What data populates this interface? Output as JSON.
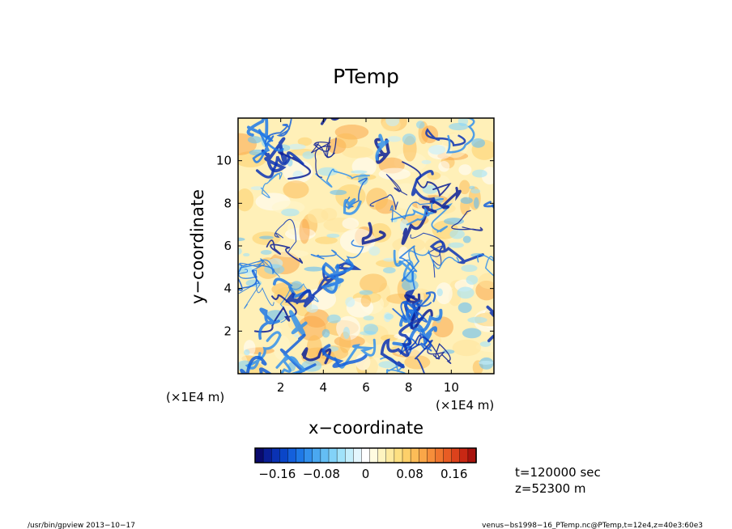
{
  "chart_data": {
    "type": "heatmap",
    "title": "PTemp",
    "xlabel": "x−coordinate",
    "ylabel": "y−coordinate",
    "x_scale_label": "(×1E4 m)",
    "y_scale_label": "(×1E4 m)",
    "xlim": [
      0,
      12
    ],
    "ylim": [
      0,
      12
    ],
    "x_ticks": [
      2,
      4,
      6,
      8,
      10
    ],
    "y_ticks": [
      2,
      4,
      6,
      8,
      10
    ],
    "x_tick_labels": [
      "2",
      "4",
      "6",
      "8",
      "10"
    ],
    "y_tick_labels": [
      "2",
      "4",
      "6",
      "8",
      "10"
    ],
    "colorbar": {
      "range": [
        -0.2,
        0.2
      ],
      "ticks": [
        -0.16,
        -0.08,
        0,
        0.08,
        0.16
      ],
      "tick_labels": [
        "−0.16",
        "−0.08",
        "0",
        "0.08",
        "0.16"
      ],
      "colors": [
        "#0a0a6e",
        "#0a1e96",
        "#0a32b4",
        "#0a46c8",
        "#1460dc",
        "#1e78e6",
        "#3290ec",
        "#4aa8f0",
        "#64bef4",
        "#82d2f8",
        "#a0e2fa",
        "#c4eefc",
        "#e4f6fe",
        "#ffffff",
        "#fffbe0",
        "#fff4c0",
        "#ffeaa0",
        "#fee082",
        "#fdd06a",
        "#fcbc58",
        "#faa648",
        "#f68e3a",
        "#f0762e",
        "#e85c24",
        "#dc421c",
        "#c82814",
        "#a8140e"
      ]
    },
    "annotations": [
      "t=120000 sec",
      "z=52300 m"
    ],
    "footer_left": "/usr/bin/gpview   2013−10−17",
    "footer_right": "venus−bs1998−16_PTemp.nc@PTemp,t=12e4,z=40e3:60e3"
  }
}
